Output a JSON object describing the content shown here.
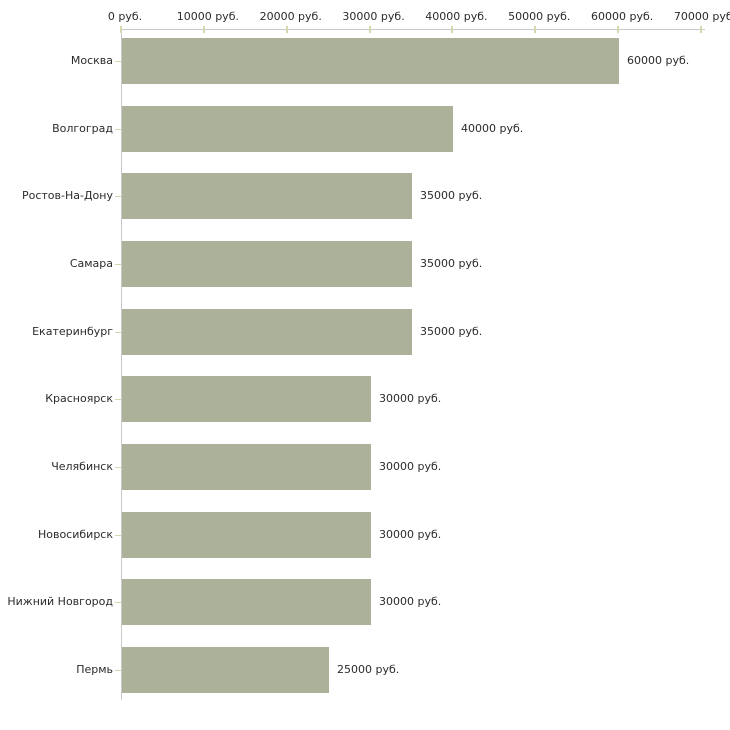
{
  "chart_data": {
    "type": "bar",
    "orientation": "horizontal",
    "title": "",
    "xlabel": "",
    "ylabel": "",
    "categories": [
      "Москва",
      "Волгоград",
      "Ростов-На-Дону",
      "Самара",
      "Екатеринбург",
      "Красноярск",
      "Челябинск",
      "Новосибирск",
      "Нижний Новгород",
      "Пермь"
    ],
    "values": [
      60000,
      40000,
      35000,
      35000,
      35000,
      30000,
      30000,
      30000,
      30000,
      25000
    ],
    "value_labels": [
      "60000 руб.",
      "40000 руб.",
      "35000 руб.",
      "35000 руб.",
      "35000 руб.",
      "30000 руб.",
      "30000 руб.",
      "30000 руб.",
      "30000 руб.",
      "25000 руб."
    ],
    "x_tick_values": [
      0,
      10000,
      20000,
      30000,
      40000,
      50000,
      60000,
      70000
    ],
    "x_tick_labels": [
      "0 руб.",
      "10000 руб.",
      "20000 руб.",
      "30000 руб.",
      "40000 руб.",
      "50000 руб.",
      "60000 руб.",
      "70000 руб."
    ],
    "xlim": [
      0,
      70000
    ],
    "grid": false,
    "legend": "none",
    "colors": {
      "bar_fill": "#acb299",
      "axis_line": "#c9c9c9",
      "tick_mark": "#d6d7ae",
      "text": "#2b2b2b",
      "background": "#ffffff"
    }
  }
}
